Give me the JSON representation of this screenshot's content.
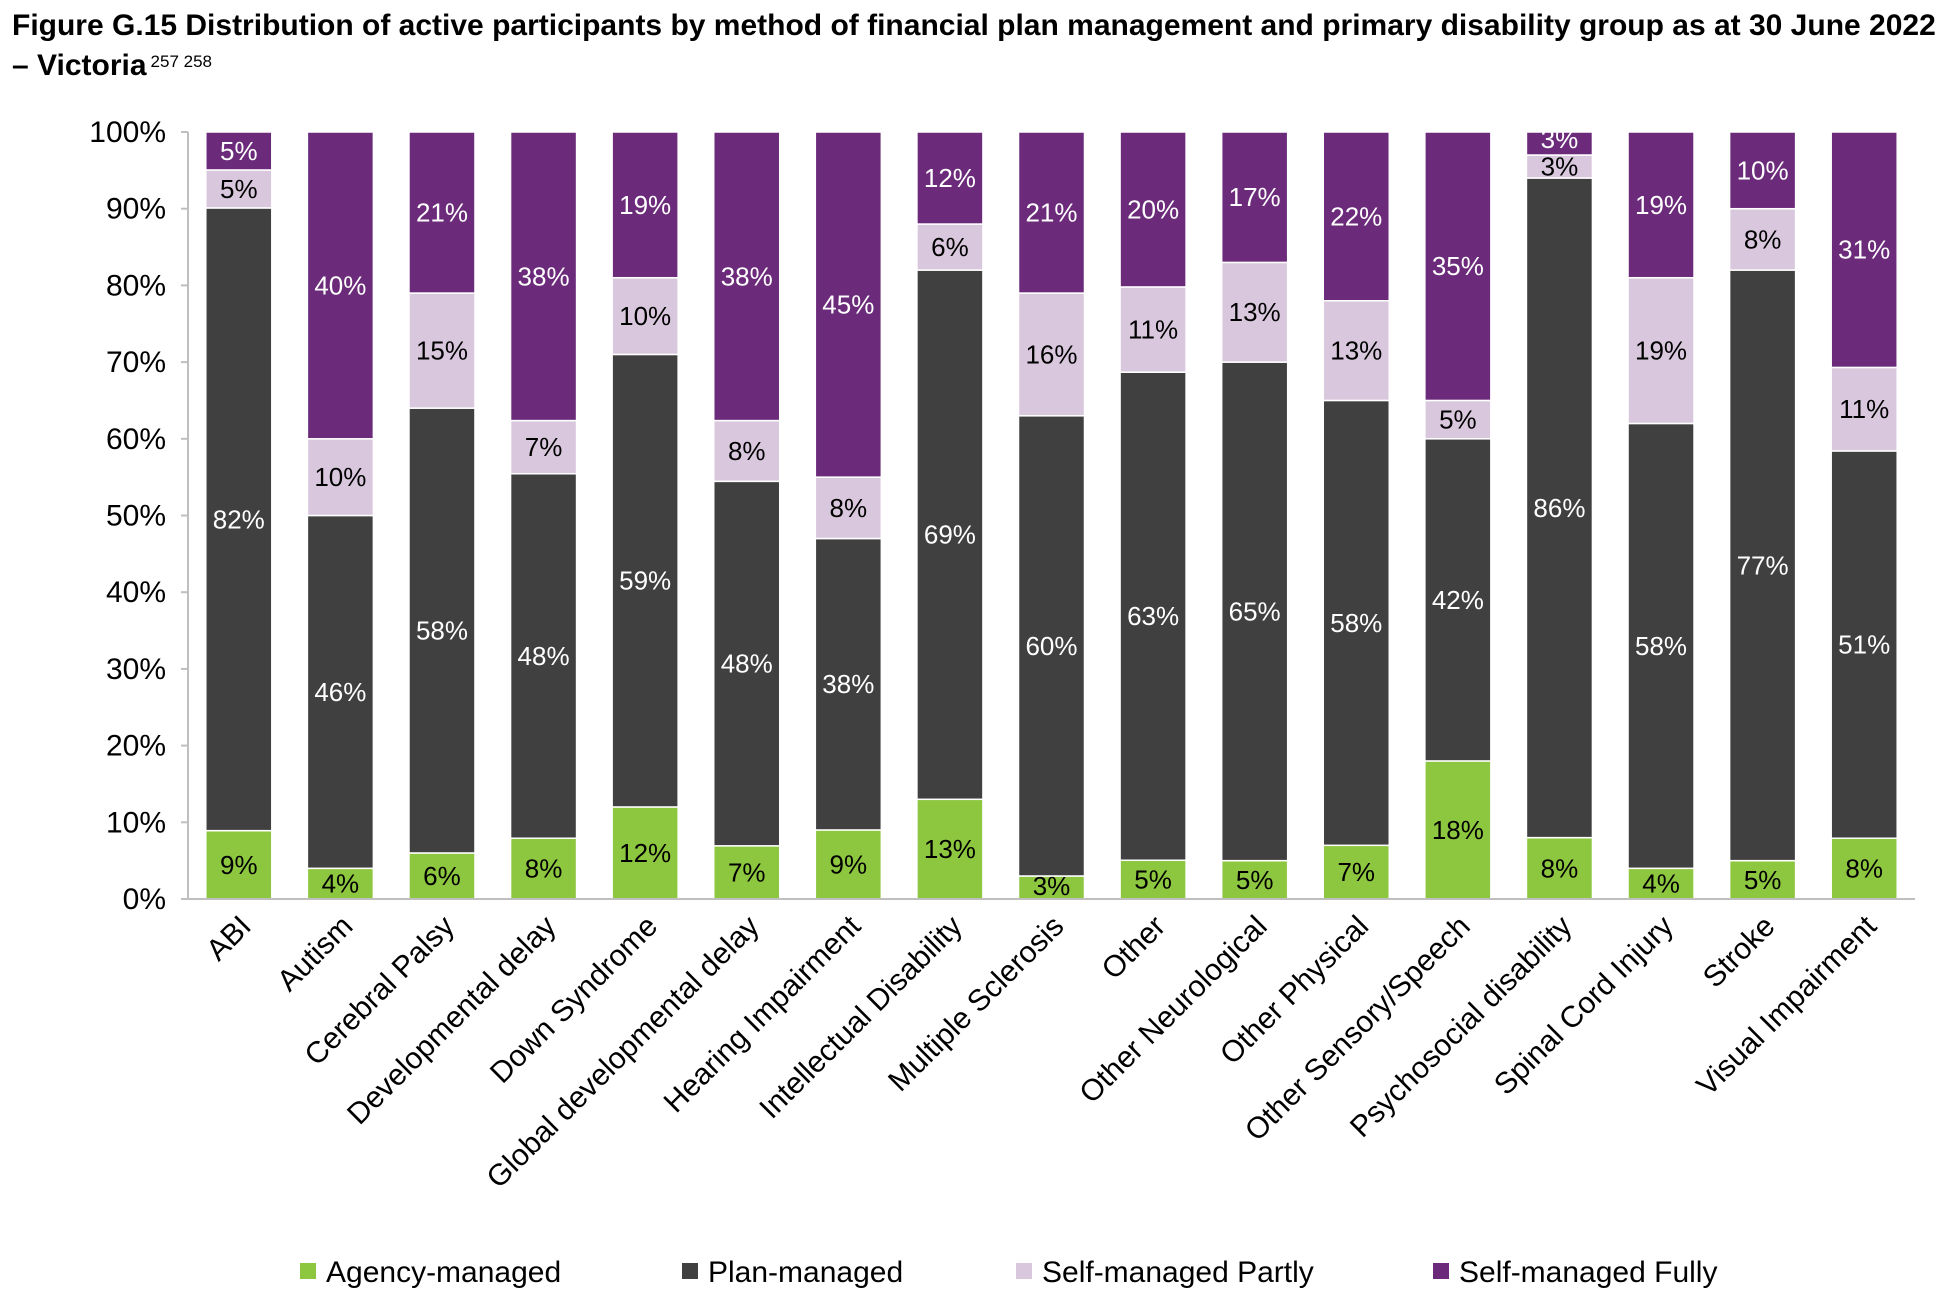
{
  "title": {
    "text": "Figure G.15 Distribution of active participants by method of financial plan management and primary disability group as at 30 June 2022 – Victoria",
    "footnotes": "257  258"
  },
  "colors": {
    "agency": "#8dc63f",
    "plan": "#404040",
    "self_partly": "#d9c8dd",
    "self_fully": "#6b2a7a",
    "axis": "#bfbfbf"
  },
  "chart_data": {
    "type": "bar",
    "stacked": true,
    "percent": true,
    "categories": [
      "ABI",
      "Autism",
      "Cerebral Palsy",
      "Developmental delay",
      "Down Syndrome",
      "Global developmental delay",
      "Hearing Impairment",
      "Intellectual Disability",
      "Multiple Sclerosis",
      "Other",
      "Other Neurological",
      "Other Physical",
      "Other Sensory/Speech",
      "Psychosocial disability",
      "Spinal Cord Injury",
      "Stroke",
      "Visual Impairment"
    ],
    "series": [
      {
        "name": "Agency-managed",
        "values": [
          9,
          4,
          6,
          8,
          12,
          7,
          9,
          13,
          3,
          5,
          5,
          7,
          18,
          8,
          4,
          5,
          8
        ],
        "labels": [
          "9%",
          "4%",
          "6%",
          "8%",
          "12%",
          "7%",
          "9%",
          "13%",
          "3%",
          "5%",
          "5%",
          "7%",
          "18%",
          "8%",
          "4%",
          "5%",
          "8%"
        ]
      },
      {
        "name": "Plan-managed",
        "values": [
          82,
          46,
          58,
          48,
          59,
          48,
          38,
          69,
          60,
          63,
          65,
          58,
          42,
          86,
          58,
          77,
          51
        ],
        "labels": [
          "82%",
          "46%",
          "58%",
          "48%",
          "59%",
          "48%",
          "38%",
          "69%",
          "60%",
          "63%",
          "65%",
          "58%",
          "42%",
          "86%",
          "58%",
          "77%",
          "51%"
        ]
      },
      {
        "name": "Self-managed Partly",
        "values": [
          5,
          10,
          15,
          7,
          10,
          8,
          8,
          6,
          16,
          11,
          13,
          13,
          5,
          3,
          19,
          8,
          11
        ],
        "labels": [
          "5%",
          "10%",
          "15%",
          "7%",
          "10%",
          "8%",
          "8%",
          "6%",
          "16%",
          "11%",
          "13%",
          "13%",
          "5%",
          "3%",
          "19%",
          "8%",
          "11%"
        ]
      },
      {
        "name": "Self-managed Fully",
        "values": [
          5,
          40,
          21,
          38,
          19,
          38,
          45,
          12,
          21,
          20,
          17,
          22,
          35,
          3,
          19,
          10,
          31
        ],
        "labels": [
          "5%",
          "40%",
          "21%",
          "38%",
          "19%",
          "38%",
          "45%",
          "12%",
          "21%",
          "20%",
          "17%",
          "22%",
          "35%",
          "3%",
          "19%",
          "10%",
          "31%"
        ]
      }
    ],
    "yticks": [
      "0%",
      "10%",
      "20%",
      "30%",
      "40%",
      "50%",
      "60%",
      "70%",
      "80%",
      "90%",
      "100%"
    ],
    "ylim": [
      0,
      100
    ],
    "xlabel": "",
    "ylabel": "",
    "legend": "bottom",
    "grid": false
  }
}
